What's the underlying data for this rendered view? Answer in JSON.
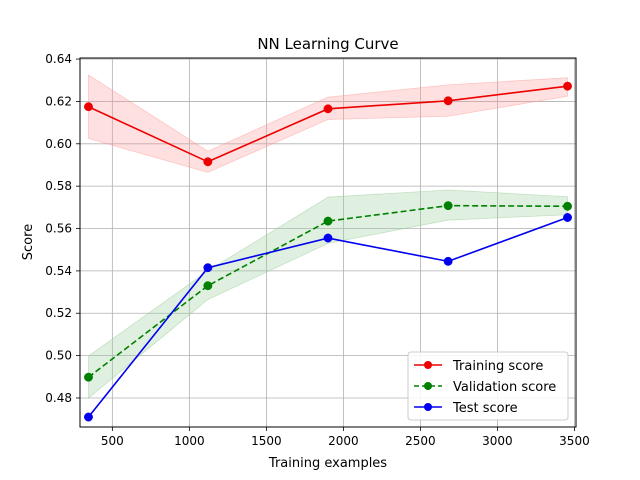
{
  "chart_data": {
    "type": "line",
    "title": "NN Learning Curve",
    "xlabel": "Training examples",
    "ylabel": "Score",
    "xlim": [
      290,
      3510
    ],
    "ylim": [
      0.4663,
      0.6405
    ],
    "x_ticks": [
      500,
      1000,
      1500,
      2000,
      2500,
      3000,
      3500
    ],
    "x_tick_labels": [
      "500",
      "1000",
      "1500",
      "2000",
      "2500",
      "3000",
      "3500"
    ],
    "y_ticks": [
      0.48,
      0.5,
      0.52,
      0.54,
      0.56,
      0.58,
      0.6,
      0.62,
      0.64
    ],
    "y_tick_labels": [
      "0.48",
      "0.50",
      "0.52",
      "0.54",
      "0.56",
      "0.58",
      "0.60",
      "0.62",
      "0.64"
    ],
    "grid": true,
    "legend_position": "lower-right",
    "x": [
      345,
      1120,
      1900,
      2680,
      3455
    ],
    "series": [
      {
        "name": "Training score",
        "color": "#ee0000",
        "linestyle": "solid",
        "marker": "circle",
        "values": [
          0.6175,
          0.5915,
          0.6165,
          0.6203,
          0.6272
        ],
        "band_lower": [
          0.6025,
          0.5865,
          0.6115,
          0.613,
          0.6225
        ],
        "band_upper": [
          0.6325,
          0.5965,
          0.622,
          0.6278,
          0.6312
        ],
        "band_color": "#ff9999"
      },
      {
        "name": "Validation score",
        "color": "#008000",
        "linestyle": "dashed",
        "marker": "circle",
        "values": [
          0.4898,
          0.533,
          0.5635,
          0.5708,
          0.5705
        ],
        "band_lower": [
          0.48,
          0.5265,
          0.553,
          0.564,
          0.5665
        ],
        "band_upper": [
          0.4998,
          0.54,
          0.5748,
          0.5782,
          0.575
        ],
        "band_color": "#99cc99"
      },
      {
        "name": "Test score",
        "color": "#0000ee",
        "linestyle": "solid",
        "marker": "circle",
        "values": [
          0.471,
          0.5415,
          0.5555,
          0.5445,
          0.5652
        ]
      }
    ]
  }
}
